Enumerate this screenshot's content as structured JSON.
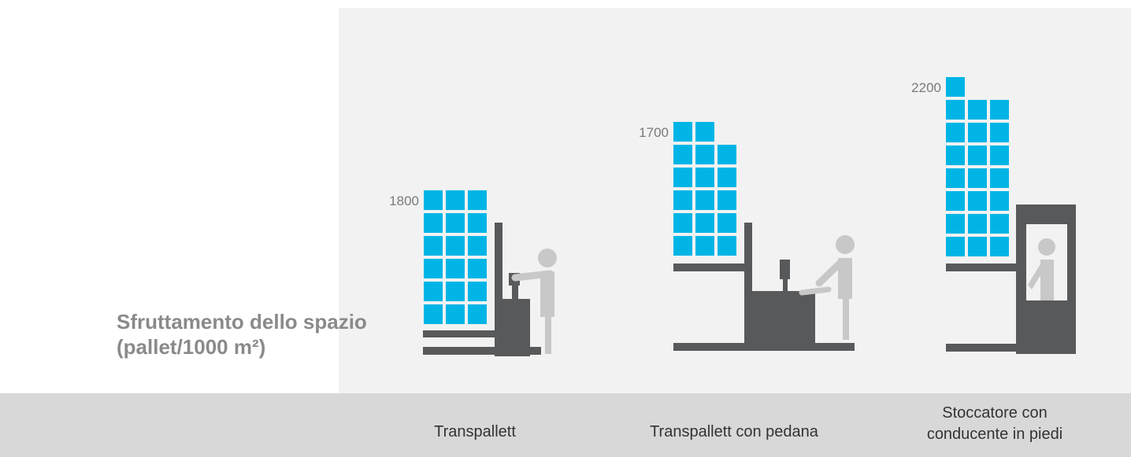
{
  "title": {
    "lines": [
      "Sfruttamento dello spazio",
      "(pallet/1000 m²)"
    ]
  },
  "items": [
    {
      "label": [
        "Transpallett"
      ],
      "value": 1800
    },
    {
      "label": [
        "Transpallett con pedana"
      ],
      "value": 1700
    },
    {
      "label": [
        "Stoccatore con",
        "conducente in piedi"
      ],
      "value": 2200
    }
  ]
}
